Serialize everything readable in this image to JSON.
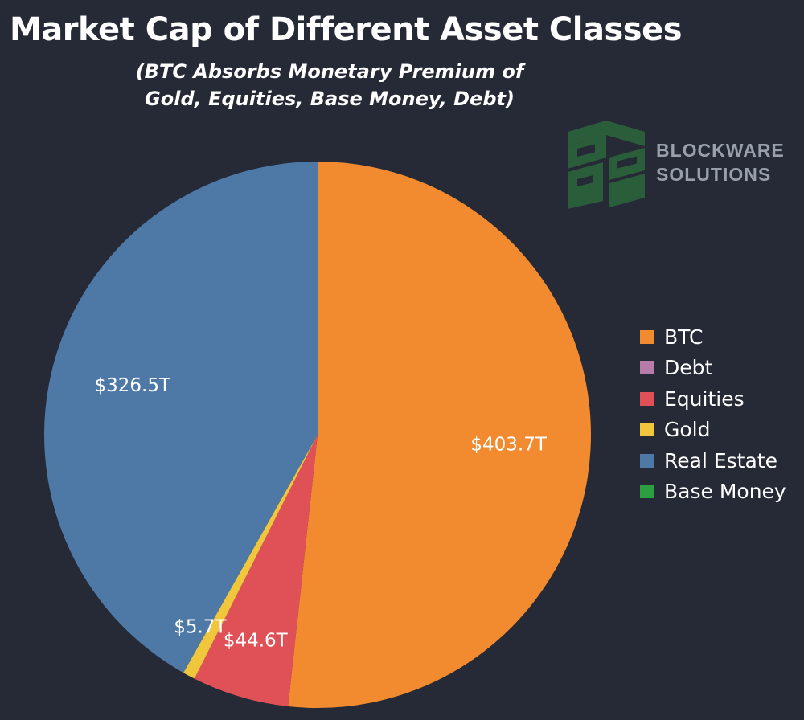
{
  "chart_data": {
    "type": "pie",
    "title": "Market Cap of Different Asset Classes",
    "subtitle_lines": [
      "(BTC Absorbs Monetary Premium of",
      "Gold, Equities, Base Money, Debt)"
    ],
    "unit": "T",
    "slices": [
      {
        "name": "BTC",
        "value": 403.7,
        "label": "$403.7T",
        "color": "#f28b30"
      },
      {
        "name": "Debt",
        "value": 0,
        "label": "",
        "color": "#b77daa"
      },
      {
        "name": "Equities",
        "value": 44.6,
        "label": "$44.6T",
        "color": "#e05157"
      },
      {
        "name": "Gold",
        "value": 5.7,
        "label": "$5.7T",
        "color": "#f0c73c"
      },
      {
        "name": "Real Estate",
        "value": 326.5,
        "label": "$326.5T",
        "color": "#4e79a7"
      },
      {
        "name": "Base Money",
        "value": 0,
        "label": "",
        "color": "#2ca040"
      }
    ],
    "start_angle": "12 o'clock",
    "direction": "clockwise",
    "legend_placement": "right"
  },
  "logo": {
    "line1": "BLOCKWARE",
    "line2": "SOLUTIONS",
    "mark_color": "#2a5e3a"
  }
}
